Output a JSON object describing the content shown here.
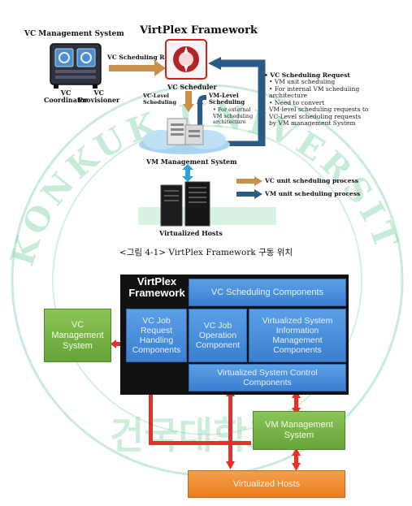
{
  "top_diagram": {
    "title": "VirtPlex Framework",
    "vc_management_system": "VC Management System",
    "vc_coordinator": "VC\nCoordinator",
    "vc_provisioner": "VC\nProvisioner",
    "vc_scheduling_request_arrow": "VC Scheduling Request",
    "vc_scheduler": "VC Scheduler",
    "vc_level_scheduling": "VC-Level\nScheduling",
    "vm_level_scheduling": "VM-Level\nScheduling",
    "vm_level_note": "For external\nVM scheduling\narchitecture",
    "vm_management_system": "VM Management System",
    "virtualized_hosts": "Virtualized Hosts",
    "right_note_title": "VC Scheduling Request",
    "right_note_items": [
      "VM unit scheduling",
      "For internal VM scheduling\narchitecture",
      "Need to convert\nVM-level scheduling requests to\nVC-Level scheduling requests\nby VM management System"
    ],
    "legend": [
      {
        "label": "VC unit scheduling process",
        "color": "#c8904a"
      },
      {
        "label": "VM unit scheduling process",
        "color": "#2a5a86"
      }
    ]
  },
  "caption": "<그림 4-1> VirtPlex Framework 구동 위치",
  "bottom_diagram": {
    "framework_title": "VirtPlex\nFramework",
    "vc_scheduling_components": "VC Scheduling Components",
    "vc_job_request_handling": "VC Job\nRequest\nHandling\nComponents",
    "vc_job_operation": "VC Job\nOperation\nComponent",
    "virtualized_system_information": "Virtualized System\nInformation\nManagement\nComponents",
    "virtualized_system_control": "Virtualized System Control\nComponents",
    "vc_management_system": "VC\nManagement\nSystem",
    "vm_management_system": "VM Management\nSystem",
    "virtualized_hosts": "Virtualized Hosts",
    "colors": {
      "blue": "#3b7fcf",
      "green": "#66a33b",
      "orange": "#f08a2c",
      "arrow_red": "#e8302a",
      "dark_bg": "#111111"
    }
  },
  "watermark": {
    "arc_text": "KONKUK UNIVERSITY KOREA",
    "korean_text": "건국대학교"
  }
}
